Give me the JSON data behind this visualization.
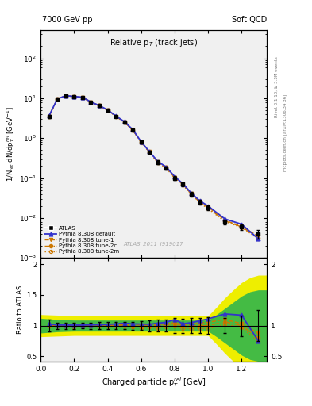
{
  "title_left": "7000 GeV pp",
  "title_right": "Soft QCD",
  "plot_title": "Relative p$_T$ (track jets)",
  "xlabel": "Charged particle p$_T^{\\,}$el [GeV]",
  "ylabel_main": "1/N$_{jet}$ dN/dp$_T^{\\,}$el [GeV$^{-1}$]",
  "ylabel_ratio": "Ratio to ATLAS",
  "watermark": "ATLAS_2011_I919017",
  "right_label_top": "Rivet 3.1.10, ≥ 3.3M events",
  "right_label_bottom": "mcplots.cern.ch [arXiv:1306.34 36]",
  "xlim": [
    0.0,
    1.35
  ],
  "ylim_main": [
    0.001,
    500
  ],
  "ylim_ratio": [
    0.42,
    2.1
  ],
  "atlas_x": [
    0.05,
    0.1,
    0.15,
    0.2,
    0.25,
    0.3,
    0.35,
    0.4,
    0.45,
    0.5,
    0.55,
    0.6,
    0.65,
    0.7,
    0.75,
    0.8,
    0.85,
    0.9,
    0.95,
    1.0,
    1.1,
    1.2,
    1.3
  ],
  "atlas_y": [
    3.5,
    9.5,
    11.5,
    11.0,
    10.5,
    8.0,
    6.5,
    5.0,
    3.5,
    2.5,
    1.6,
    0.8,
    0.45,
    0.25,
    0.18,
    0.1,
    0.07,
    0.04,
    0.025,
    0.018,
    0.008,
    0.006,
    0.004
  ],
  "atlas_yerr": [
    0.35,
    0.48,
    0.58,
    0.55,
    0.5,
    0.4,
    0.35,
    0.3,
    0.2,
    0.15,
    0.1,
    0.06,
    0.04,
    0.025,
    0.018,
    0.012,
    0.008,
    0.005,
    0.003,
    0.0025,
    0.001,
    0.001,
    0.001
  ],
  "pythia_default_x": [
    0.05,
    0.1,
    0.15,
    0.2,
    0.25,
    0.3,
    0.35,
    0.4,
    0.45,
    0.5,
    0.55,
    0.6,
    0.65,
    0.7,
    0.75,
    0.8,
    0.85,
    0.9,
    0.95,
    1.0,
    1.1,
    1.2,
    1.3
  ],
  "pythia_default_y": [
    3.6,
    9.6,
    11.6,
    11.1,
    10.6,
    8.1,
    6.6,
    5.1,
    3.6,
    2.6,
    1.65,
    0.82,
    0.46,
    0.26,
    0.19,
    0.11,
    0.072,
    0.042,
    0.027,
    0.02,
    0.0095,
    0.007,
    0.003
  ],
  "pythia_tune1_x": [
    0.05,
    0.1,
    0.15,
    0.2,
    0.25,
    0.3,
    0.35,
    0.4,
    0.45,
    0.5,
    0.55,
    0.6,
    0.65,
    0.7,
    0.75,
    0.8,
    0.85,
    0.9,
    0.95,
    1.0,
    1.1,
    1.2,
    1.3
  ],
  "pythia_tune1_y": [
    3.55,
    9.55,
    11.55,
    11.05,
    10.55,
    8.05,
    6.55,
    5.05,
    3.55,
    2.55,
    1.62,
    0.81,
    0.455,
    0.255,
    0.185,
    0.105,
    0.071,
    0.041,
    0.026,
    0.019,
    0.0088,
    0.0062,
    0.0035
  ],
  "pythia_tune2c_x": [
    0.05,
    0.1,
    0.15,
    0.2,
    0.25,
    0.3,
    0.35,
    0.4,
    0.45,
    0.5,
    0.55,
    0.6,
    0.65,
    0.7,
    0.75,
    0.8,
    0.85,
    0.9,
    0.95,
    1.0,
    1.1,
    1.2,
    1.3
  ],
  "pythia_tune2c_y": [
    3.52,
    9.52,
    11.52,
    11.02,
    10.52,
    8.02,
    6.52,
    5.02,
    3.52,
    2.52,
    1.6,
    0.79,
    0.45,
    0.25,
    0.183,
    0.103,
    0.069,
    0.04,
    0.025,
    0.018,
    0.0085,
    0.006,
    0.0032
  ],
  "pythia_tune2m_x": [
    0.05,
    0.1,
    0.15,
    0.2,
    0.25,
    0.3,
    0.35,
    0.4,
    0.45,
    0.5,
    0.55,
    0.6,
    0.65,
    0.7,
    0.75,
    0.8,
    0.85,
    0.9,
    0.95,
    1.0,
    1.1,
    1.2,
    1.3
  ],
  "pythia_tune2m_y": [
    3.48,
    9.48,
    11.48,
    10.98,
    10.48,
    7.98,
    6.48,
    4.98,
    3.48,
    2.48,
    1.58,
    0.78,
    0.44,
    0.24,
    0.178,
    0.099,
    0.067,
    0.038,
    0.024,
    0.017,
    0.0082,
    0.0058,
    0.003
  ],
  "ratio_x": [
    0.05,
    0.1,
    0.15,
    0.2,
    0.25,
    0.3,
    0.35,
    0.4,
    0.45,
    0.5,
    0.55,
    0.6,
    0.65,
    0.7,
    0.75,
    0.8,
    0.85,
    0.9,
    0.95,
    1.0,
    1.1,
    1.2,
    1.3
  ],
  "ratio_default_y": [
    1.03,
    1.01,
    1.01,
    1.009,
    1.009,
    1.013,
    1.015,
    1.02,
    1.028,
    1.04,
    1.03,
    1.025,
    1.022,
    1.04,
    1.055,
    1.1,
    1.03,
    1.05,
    1.08,
    1.11,
    1.19,
    1.17,
    0.75
  ],
  "ratio_tune1_y": [
    1.01,
    1.005,
    1.004,
    1.005,
    1.005,
    1.006,
    1.008,
    1.01,
    1.014,
    1.02,
    1.01,
    1.013,
    1.011,
    1.02,
    1.028,
    1.05,
    1.014,
    1.025,
    1.04,
    1.056,
    1.1,
    1.033,
    0.875
  ],
  "ratio_tune2c_y": [
    1.006,
    1.002,
    1.002,
    1.002,
    1.002,
    1.003,
    1.003,
    1.004,
    1.006,
    1.008,
    1.0,
    0.988,
    1.0,
    1.0,
    1.017,
    1.03,
    1.0,
    1.0,
    1.0,
    1.0,
    1.063,
    1.0,
    0.8
  ],
  "ratio_tune2m_y": [
    0.994,
    0.998,
    0.998,
    0.982,
    0.998,
    0.998,
    0.997,
    0.996,
    0.994,
    0.992,
    0.988,
    0.975,
    0.978,
    0.96,
    0.989,
    0.99,
    0.957,
    0.95,
    0.96,
    0.944,
    1.025,
    0.967,
    0.75
  ],
  "ratio_atlas_err": [
    0.1,
    0.053,
    0.05,
    0.05,
    0.048,
    0.05,
    0.054,
    0.06,
    0.057,
    0.06,
    0.063,
    0.075,
    0.089,
    0.1,
    0.1,
    0.12,
    0.114,
    0.125,
    0.12,
    0.139,
    0.125,
    0.167,
    0.25
  ],
  "green_band_x": [
    0.0,
    0.1,
    0.2,
    0.3,
    0.4,
    0.5,
    0.6,
    0.7,
    0.8,
    0.9,
    1.0,
    1.05,
    1.1,
    1.15,
    1.2,
    1.25,
    1.3,
    1.35
  ],
  "green_band_lo": [
    0.88,
    0.9,
    0.91,
    0.91,
    0.91,
    0.91,
    0.91,
    0.91,
    0.91,
    0.91,
    0.91,
    0.82,
    0.72,
    0.62,
    0.52,
    0.45,
    0.42,
    0.42
  ],
  "green_band_hi": [
    1.12,
    1.1,
    1.09,
    1.09,
    1.09,
    1.09,
    1.09,
    1.09,
    1.09,
    1.09,
    1.09,
    1.18,
    1.28,
    1.38,
    1.48,
    1.55,
    1.58,
    1.58
  ],
  "yellow_band_x": [
    0.0,
    0.1,
    0.2,
    0.3,
    0.4,
    0.5,
    0.6,
    0.7,
    0.8,
    0.9,
    1.0,
    1.05,
    1.1,
    1.15,
    1.2,
    1.25,
    1.3,
    1.35
  ],
  "yellow_band_lo": [
    0.82,
    0.83,
    0.84,
    0.84,
    0.84,
    0.84,
    0.84,
    0.84,
    0.84,
    0.84,
    0.84,
    0.7,
    0.55,
    0.42,
    0.3,
    0.22,
    0.18,
    0.18
  ],
  "yellow_band_hi": [
    1.18,
    1.17,
    1.16,
    1.16,
    1.16,
    1.16,
    1.16,
    1.16,
    1.16,
    1.16,
    1.16,
    1.3,
    1.45,
    1.58,
    1.7,
    1.78,
    1.82,
    1.82
  ],
  "color_atlas": "#000000",
  "color_default": "#3333cc",
  "color_tune": "#cc7700",
  "color_green": "#44bb44",
  "color_yellow": "#eeee00",
  "bg_color": "#f0f0f0"
}
